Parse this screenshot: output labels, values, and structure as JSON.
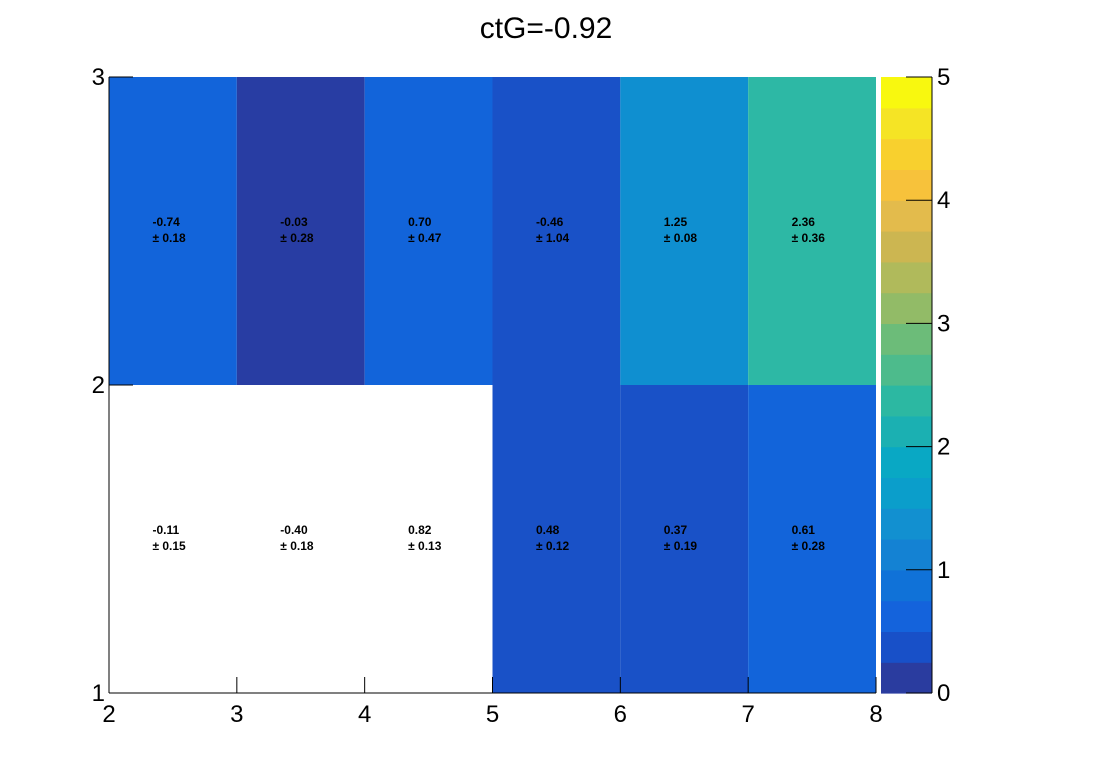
{
  "chart_data": {
    "type": "heatmap",
    "title": "ctG=-0.92",
    "xlabel": "",
    "ylabel": "",
    "x_edges": [
      2,
      3,
      4,
      5,
      6,
      7,
      8
    ],
    "y_edges": [
      1,
      2,
      3
    ],
    "xlim": [
      2,
      8
    ],
    "ylim": [
      1,
      3
    ],
    "x_tick_labels": [
      "2",
      "3",
      "4",
      "5",
      "6",
      "7",
      "8"
    ],
    "y_tick_labels": [
      "1",
      "2",
      "3"
    ],
    "colorbar": {
      "range": [
        0,
        5
      ],
      "tick_labels": [
        "0",
        "1",
        "2",
        "3",
        "4",
        "5"
      ],
      "palette": [
        "#2a3c9f",
        "#1850c8",
        "#1463dc",
        "#1072d8",
        "#1482d3",
        "#1290d0",
        "#0b9ecb",
        "#09a8c4",
        "#1bb0b2",
        "#2cb8a2",
        "#4dbb8c",
        "#6cbc79",
        "#92bb67",
        "#b0ba5b",
        "#ccb651",
        "#e3bb4c",
        "#f7c23b",
        "#f8d02e",
        "#f5e425",
        "#f8f80f"
      ]
    },
    "cells": [
      {
        "x": 2.5,
        "y": 2.5,
        "value": -0.74,
        "error": 0.18,
        "label": "-0.74",
        "err_label": "± 0.18",
        "color": "#1264da"
      },
      {
        "x": 3.5,
        "y": 2.5,
        "value": -0.03,
        "error": 0.28,
        "label": "-0.03",
        "err_label": "± 0.28",
        "color": "#283da3"
      },
      {
        "x": 4.5,
        "y": 2.5,
        "value": 0.7,
        "error": 0.47,
        "label": "0.70",
        "err_label": "± 0.47",
        "color": "#1264da"
      },
      {
        "x": 5.5,
        "y": 2.5,
        "value": -0.46,
        "error": 1.04,
        "label": "-0.46",
        "err_label": "± 1.04",
        "color": "#1951c7"
      },
      {
        "x": 6.5,
        "y": 2.5,
        "value": 1.25,
        "error": 0.08,
        "label": "1.25",
        "err_label": "± 0.08",
        "color": "#0f8fd0"
      },
      {
        "x": 7.5,
        "y": 2.5,
        "value": 2.36,
        "error": 0.36,
        "label": "2.36",
        "err_label": "± 0.36",
        "color": "#2db8a5"
      },
      {
        "x": 2.5,
        "y": 1.5,
        "value": -0.11,
        "error": 0.15,
        "label": "-0.11",
        "err_label": "± 0.15",
        "color": "#ffffff"
      },
      {
        "x": 3.5,
        "y": 1.5,
        "value": -0.4,
        "error": 0.18,
        "label": "-0.40",
        "err_label": "± 0.18",
        "color": "#ffffff"
      },
      {
        "x": 4.5,
        "y": 1.5,
        "value": 0.82,
        "error": 0.13,
        "label": "0.82",
        "err_label": "± 0.13",
        "color": "#ffffff"
      },
      {
        "x": 5.5,
        "y": 1.5,
        "value": 0.48,
        "error": 0.12,
        "label": "0.48",
        "err_label": "± 0.12",
        "color": "#1951c7"
      },
      {
        "x": 6.5,
        "y": 1.5,
        "value": 0.37,
        "error": 0.19,
        "label": "0.37",
        "err_label": "± 0.19",
        "color": "#1951c7"
      },
      {
        "x": 7.5,
        "y": 1.5,
        "value": 0.61,
        "error": 0.28,
        "label": "0.61",
        "err_label": "± 0.28",
        "color": "#1264da"
      }
    ],
    "grid": false,
    "legend": "none"
  }
}
